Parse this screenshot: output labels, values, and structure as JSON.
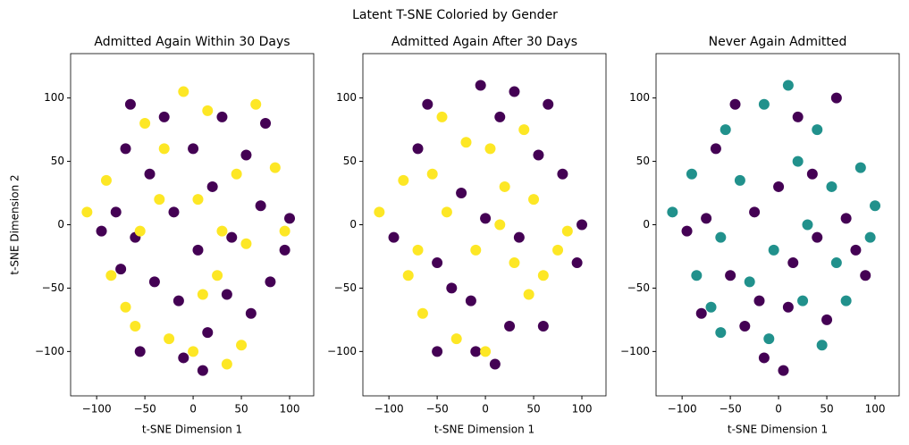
{
  "title": "Latent T-SNE Coloried by Gender",
  "chart_data": [
    {
      "type": "scatter",
      "title": "Admitted Again Within 30 Days",
      "xlabel": "t-SNE Dimension 1",
      "ylabel": "t-SNE Dimension 2",
      "xlim": [
        -127,
        125
      ],
      "ylim": [
        -135,
        135
      ],
      "xticks": [
        {
          "value": -100,
          "label": "−100"
        },
        {
          "value": -50,
          "label": "−50"
        },
        0,
        50,
        100
      ],
      "yticks": [
        {
          "value": -100,
          "label": "−100"
        },
        {
          "value": -50,
          "label": "−50"
        },
        0,
        50,
        100
      ],
      "series": [
        {
          "color": "#440154",
          "x": [
            -95,
            -80,
            -75,
            -60,
            -45,
            -40,
            -30,
            -20,
            -15,
            -10,
            0,
            5,
            10,
            20,
            30,
            35,
            40,
            55,
            60,
            70,
            75,
            80,
            95,
            100,
            -55,
            -70,
            -65,
            15
          ],
          "values": [
            -5,
            10,
            -35,
            -10,
            40,
            -45,
            85,
            10,
            -60,
            -105,
            60,
            -20,
            -115,
            30,
            85,
            -55,
            -10,
            55,
            -70,
            15,
            80,
            -45,
            -20,
            5,
            -100,
            60,
            95,
            -85
          ]
        },
        {
          "color": "#fde725",
          "x": [
            -110,
            -90,
            -85,
            -70,
            -55,
            -50,
            -35,
            -25,
            -10,
            0,
            5,
            15,
            25,
            35,
            45,
            50,
            55,
            65,
            85,
            95,
            -60,
            -30,
            10,
            30
          ],
          "values": [
            10,
            35,
            -40,
            -65,
            -5,
            80,
            20,
            -90,
            105,
            -100,
            20,
            90,
            -40,
            -110,
            40,
            -95,
            -15,
            95,
            45,
            -5,
            -80,
            60,
            -55,
            -5
          ]
        }
      ]
    },
    {
      "type": "scatter",
      "title": "Admitted Again After 30 Days",
      "xlabel": "t-SNE Dimension 1",
      "xlim": [
        -127,
        125
      ],
      "ylim": [
        -135,
        135
      ],
      "xticks": [
        {
          "value": -100,
          "label": "−100"
        },
        {
          "value": -50,
          "label": "−50"
        },
        0,
        50,
        100
      ],
      "yticks": [
        {
          "value": -100,
          "label": "−100"
        },
        {
          "value": -50,
          "label": "−50"
        },
        0,
        50,
        100
      ],
      "series": [
        {
          "color": "#440154",
          "x": [
            -95,
            -70,
            -60,
            -50,
            -35,
            -25,
            -15,
            -5,
            0,
            10,
            15,
            25,
            30,
            35,
            55,
            60,
            65,
            80,
            100,
            95,
            -10,
            -50
          ],
          "values": [
            -10,
            60,
            95,
            -30,
            -50,
            25,
            -60,
            110,
            5,
            -110,
            85,
            -80,
            105,
            -10,
            55,
            -80,
            95,
            40,
            0,
            -30,
            -100,
            -100
          ]
        },
        {
          "color": "#fde725",
          "x": [
            -110,
            -85,
            -80,
            -65,
            -55,
            -40,
            -30,
            -10,
            0,
            5,
            15,
            20,
            30,
            40,
            45,
            50,
            60,
            75,
            85,
            -45,
            -20,
            -70
          ],
          "values": [
            10,
            35,
            -40,
            -70,
            40,
            10,
            -90,
            -20,
            -100,
            60,
            0,
            30,
            -30,
            75,
            -55,
            20,
            -40,
            -20,
            -5,
            85,
            65,
            -20
          ]
        }
      ]
    },
    {
      "type": "scatter",
      "title": "Never Again Admitted",
      "xlabel": "t-SNE Dimension 1",
      "xlim": [
        -127,
        125
      ],
      "ylim": [
        -135,
        135
      ],
      "xticks": [
        {
          "value": -100,
          "label": "−100"
        },
        {
          "value": -50,
          "label": "−50"
        },
        0,
        50,
        100
      ],
      "yticks": [
        {
          "value": -100,
          "label": "−100"
        },
        {
          "value": -50,
          "label": "−50"
        },
        0,
        50,
        100
      ],
      "series": [
        {
          "color": "#21918c",
          "x": [
            -110,
            -90,
            -85,
            -70,
            -60,
            -55,
            -40,
            -30,
            -15,
            -5,
            10,
            20,
            25,
            30,
            40,
            45,
            55,
            60,
            70,
            85,
            95,
            -10,
            -60,
            100
          ],
          "values": [
            10,
            40,
            -40,
            -65,
            -10,
            75,
            35,
            -45,
            95,
            -20,
            110,
            50,
            -60,
            0,
            75,
            -95,
            30,
            -30,
            -60,
            45,
            -10,
            -90,
            -85,
            15
          ]
        },
        {
          "color": "#440154",
          "x": [
            -95,
            -75,
            -65,
            -50,
            -45,
            -25,
            -20,
            -15,
            0,
            5,
            15,
            20,
            35,
            40,
            50,
            60,
            70,
            80,
            90,
            -35,
            -80,
            10
          ],
          "values": [
            -5,
            5,
            60,
            -40,
            95,
            10,
            -60,
            -105,
            30,
            -115,
            -30,
            85,
            40,
            -10,
            -75,
            100,
            5,
            -20,
            -40,
            -80,
            -70,
            -65
          ]
        }
      ]
    }
  ]
}
